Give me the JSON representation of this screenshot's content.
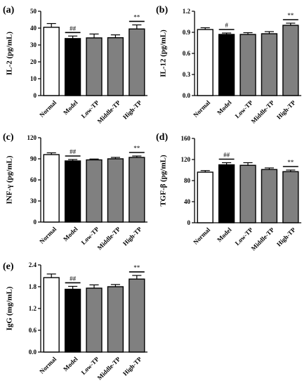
{
  "categories": [
    "Normal",
    "Model",
    "Low-TP",
    "Middle-TP",
    "High-TP"
  ],
  "colors": {
    "normal": "#ffffff",
    "model": "#000000",
    "treatment": "#808080",
    "axis": "#000000"
  },
  "chart_data": [
    {
      "type": "bar",
      "panel": "(a)",
      "ylabel": "IL-2 (pg/mL)",
      "ylim": [
        0,
        50
      ],
      "yticks": [
        "0",
        "10",
        "20",
        "30",
        "40",
        "50"
      ],
      "categories": [
        "Normal",
        "Model",
        "Low-TP",
        "Middle-TP",
        "High-TP"
      ],
      "values": [
        40.5,
        33.8,
        34.2,
        34.3,
        39.5
      ],
      "errors": [
        2.2,
        1.5,
        2.3,
        1.7,
        2.4
      ],
      "annotations": [
        {
          "category": "Model",
          "text": "##"
        },
        {
          "category": "High-TP",
          "text": "**"
        }
      ]
    },
    {
      "type": "bar",
      "panel": "(b)",
      "ylabel": "IL-12 (pg/mL)",
      "ylim": [
        0,
        1.2
      ],
      "yticks": [
        "0.0",
        "0.3",
        "0.6",
        "0.9",
        "1.2"
      ],
      "categories": [
        "Normal",
        "Model",
        "Low-TP",
        "Middle-TP",
        "High-TP"
      ],
      "values": [
        0.94,
        0.87,
        0.87,
        0.88,
        1.0
      ],
      "errors": [
        0.025,
        0.02,
        0.025,
        0.03,
        0.03
      ],
      "annotations": [
        {
          "category": "Model",
          "text": "#"
        },
        {
          "category": "High-TP",
          "text": "**"
        }
      ]
    },
    {
      "type": "bar",
      "panel": "(c)",
      "ylabel": "INF-γ (pg/mL)",
      "ylim": [
        0,
        120
      ],
      "yticks": [
        "0",
        "30",
        "60",
        "90",
        "120"
      ],
      "categories": [
        "Normal",
        "Model",
        "Low-TP",
        "Middle-TP",
        "High-TP"
      ],
      "values": [
        96,
        87,
        88.5,
        90,
        92
      ],
      "errors": [
        2.5,
        2,
        1.2,
        2,
        2
      ],
      "annotations": [
        {
          "category": "Model",
          "text": "##"
        },
        {
          "category": "High-TP",
          "text": "**"
        }
      ]
    },
    {
      "type": "bar",
      "panel": "(d)",
      "ylabel": "TGF-β (pg/mL)",
      "ylim": [
        0,
        160
      ],
      "yticks": [
        "0",
        "40",
        "80",
        "120",
        "160"
      ],
      "categories": [
        "Normal",
        "Model",
        "Low-TP",
        "Middle-TP",
        "High-TP"
      ],
      "values": [
        96,
        110,
        109,
        101,
        97
      ],
      "errors": [
        3,
        4,
        5,
        3,
        3
      ],
      "annotations": [
        {
          "category": "Model",
          "text": "##"
        },
        {
          "category": "High-TP",
          "text": "**"
        }
      ]
    },
    {
      "type": "bar",
      "panel": "(e)",
      "ylabel": "IgG (mg/mL)",
      "ylim": [
        0,
        2.4
      ],
      "yticks": [
        "0.0",
        "0.6",
        "1.2",
        "1.8",
        "2.4"
      ],
      "categories": [
        "Normal",
        "Model",
        "Low-TP",
        "Middle-TP",
        "High-TP"
      ],
      "values": [
        2.05,
        1.73,
        1.76,
        1.8,
        2.01
      ],
      "errors": [
        0.1,
        0.08,
        0.09,
        0.06,
        0.1
      ],
      "annotations": [
        {
          "category": "Model",
          "text": "##"
        },
        {
          "category": "High-TP",
          "text": "**"
        }
      ]
    }
  ]
}
